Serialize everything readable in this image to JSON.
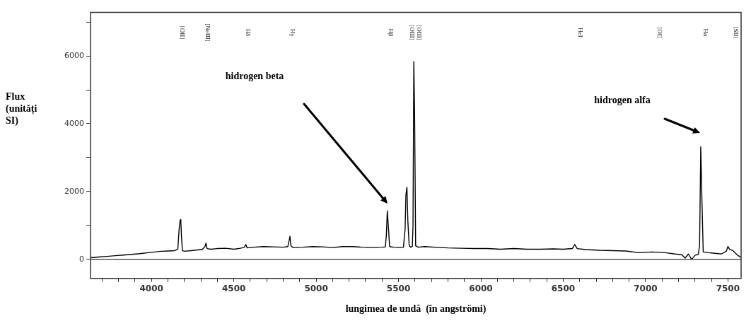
{
  "chart_data": {
    "type": "line",
    "xlabel": "lungimea de undă  (în angströmi)",
    "ylabel": "Flux (unitǎți SI)",
    "x": [
      3630,
      3680,
      3730,
      3780,
      3830,
      3880,
      3930,
      3980,
      4020,
      4060,
      4100,
      4140,
      4160,
      4168,
      4174,
      4178,
      4182,
      4188,
      4200,
      4240,
      4280,
      4310,
      4325,
      4331,
      4338,
      4360,
      4400,
      4450,
      4500,
      4540,
      4565,
      4573,
      4581,
      4620,
      4680,
      4740,
      4800,
      4828,
      4836,
      4841,
      4847,
      4860,
      4920,
      4980,
      5040,
      5100,
      5160,
      5220,
      5280,
      5340,
      5400,
      5420,
      5426,
      5432,
      5438,
      5446,
      5470,
      5510,
      5530,
      5540,
      5545,
      5551,
      5557,
      5565,
      5575,
      5584,
      5588,
      5593,
      5598,
      5604,
      5620,
      5660,
      5720,
      5800,
      5880,
      5960,
      6040,
      6120,
      6200,
      6280,
      6360,
      6440,
      6500,
      6555,
      6570,
      6585,
      6640,
      6720,
      6800,
      6880,
      6960,
      7040,
      7120,
      7180,
      7220,
      7240,
      7260,
      7280,
      7300,
      7320,
      7328,
      7335,
      7342,
      7350,
      7380,
      7420,
      7460,
      7490,
      7500,
      7510,
      7530,
      7560,
      7580
    ],
    "values": [
      50,
      70,
      90,
      110,
      130,
      150,
      170,
      200,
      220,
      240,
      250,
      260,
      300,
      900,
      1150,
      1180,
      700,
      260,
      240,
      260,
      280,
      300,
      380,
      480,
      320,
      300,
      320,
      330,
      300,
      330,
      360,
      440,
      340,
      360,
      380,
      370,
      360,
      380,
      560,
      680,
      400,
      350,
      360,
      380,
      370,
      350,
      380,
      380,
      360,
      350,
      360,
      370,
      700,
      1430,
      1000,
      380,
      360,
      350,
      360,
      900,
      1900,
      2130,
      1100,
      400,
      360,
      380,
      1000,
      5830,
      4160,
      400,
      360,
      380,
      360,
      340,
      330,
      320,
      320,
      300,
      320,
      300,
      300,
      310,
      300,
      320,
      440,
      320,
      290,
      270,
      260,
      250,
      200,
      220,
      200,
      160,
      140,
      40,
      160,
      0,
      120,
      150,
      400,
      3320,
      1800,
      220,
      200,
      180,
      160,
      240,
      380,
      300,
      260,
      120,
      60
    ],
    "color": "#000000",
    "xlim": [
      3630,
      7580
    ],
    "ylim": [
      -560,
      7280
    ],
    "xticks": [
      {
        "value": 3700,
        "label": null
      },
      {
        "value": 3800,
        "label": null
      },
      {
        "value": 3900,
        "label": null
      },
      4000,
      {
        "value": 4100,
        "label": null
      },
      {
        "value": 4200,
        "label": null
      },
      {
        "value": 4300,
        "label": null
      },
      {
        "value": 4400,
        "label": null
      },
      4500,
      {
        "value": 4600,
        "label": null
      },
      {
        "value": 4700,
        "label": null
      },
      {
        "value": 4800,
        "label": null
      },
      {
        "value": 4900,
        "label": null
      },
      5000,
      {
        "value": 5100,
        "label": null
      },
      {
        "value": 5200,
        "label": null
      },
      {
        "value": 5300,
        "label": null
      },
      {
        "value": 5400,
        "label": null
      },
      5500,
      {
        "value": 5600,
        "label": null
      },
      {
        "value": 5700,
        "label": null
      },
      {
        "value": 5800,
        "label": null
      },
      {
        "value": 5900,
        "label": null
      },
      6000,
      {
        "value": 6100,
        "label": null
      },
      {
        "value": 6200,
        "label": null
      },
      {
        "value": 6300,
        "label": null
      },
      {
        "value": 6400,
        "label": null
      },
      6500,
      {
        "value": 6600,
        "label": null
      },
      {
        "value": 6700,
        "label": null
      },
      {
        "value": 6800,
        "label": null
      },
      {
        "value": 6900,
        "label": null
      },
      7000,
      {
        "value": 7100,
        "label": null
      },
      {
        "value": 7200,
        "label": null
      },
      {
        "value": 7300,
        "label": null
      },
      {
        "value": 7400,
        "label": null
      },
      7500
    ],
    "yticks": [
      0,
      {
        "value": 1000,
        "label": null
      },
      2000,
      {
        "value": 3000,
        "label": null
      },
      4000,
      {
        "value": 5000,
        "label": null
      },
      6000,
      {
        "value": 7000,
        "label": null
      }
    ],
    "ref_lines": [
      {
        "axis": "y",
        "value": 0
      }
    ],
    "grid": false,
    "legend": false,
    "marker": "none",
    "line_style": "solid",
    "annotations": [
      "hidrogen beta",
      "hidrogen alfa",
      "[OII]",
      "[NeIII]",
      "Hδ",
      "Hγ",
      "Hβ",
      "[OIII]",
      "[OIII]",
      "HeI",
      "[OI]",
      "Hα",
      "[SII]"
    ]
  }
}
